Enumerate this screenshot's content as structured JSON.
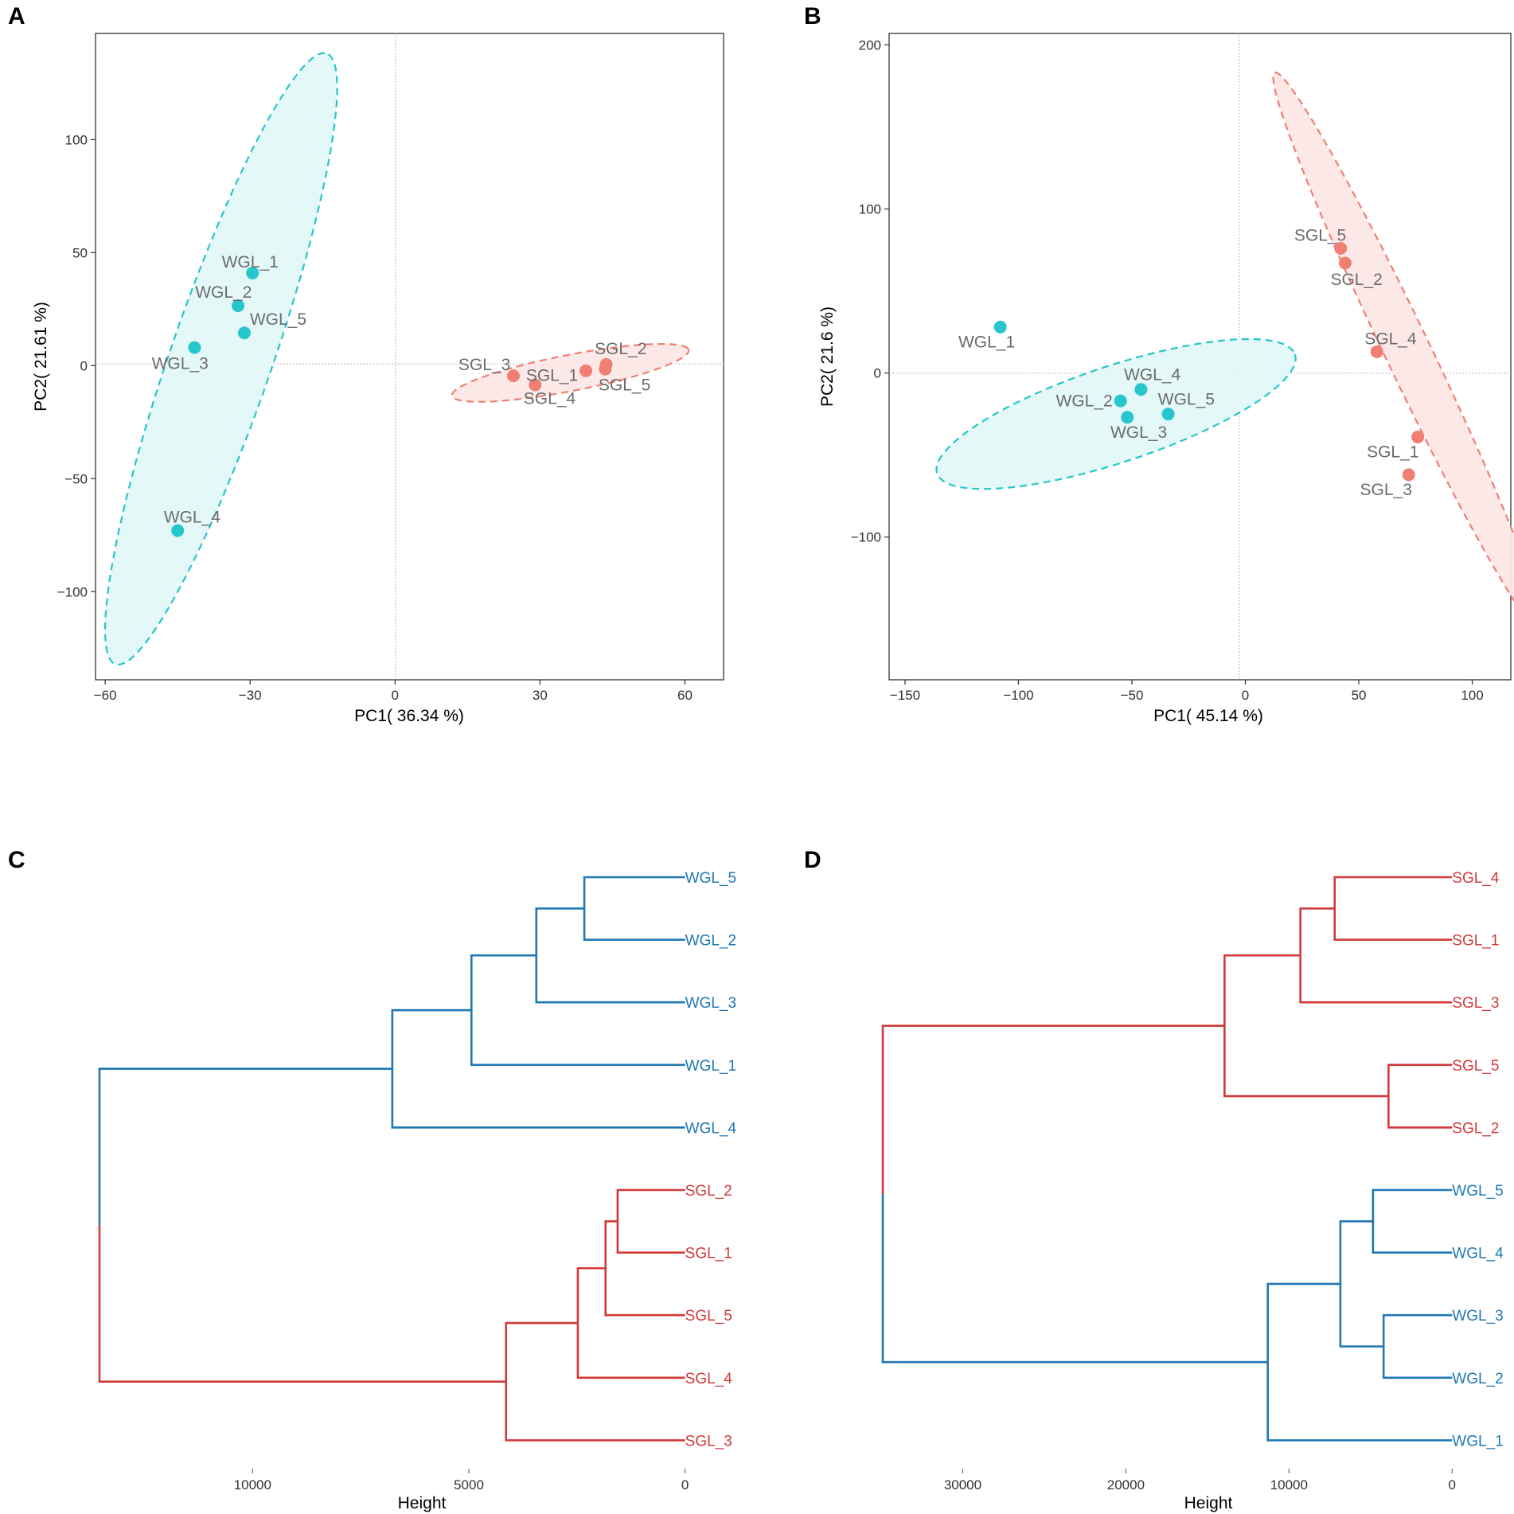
{
  "colors": {
    "wgl": "#26C6CC",
    "sgl": "#F07F72",
    "wgl_fill": "#E3F8F8",
    "sgl_fill": "#FCE8E6",
    "dendro_wgl": "#1F77B4",
    "dendro_sgl": "#D03A3A",
    "grid_line": "#b5b5b5"
  },
  "chart_data": [
    {
      "id": "pca_a",
      "type": "scatter",
      "panel_label": "A",
      "title": "",
      "xlabel": "PC1( 36.34 %)",
      "ylabel": "PC2( 21.61 %)",
      "xlim": [
        -62,
        68
      ],
      "ylim": [
        -139,
        147
      ],
      "xticks": [
        -60,
        -30,
        0,
        30,
        60
      ],
      "xtick_labels": [
        "−60",
        "−30",
        "0",
        "30",
        "60"
      ],
      "yticks": [
        -100,
        -50,
        0,
        50,
        100
      ],
      "ytick_labels": [
        "−100",
        "−50",
        "0",
        "50",
        "100"
      ],
      "groups": [
        {
          "name": "WGL",
          "color_key": "wgl",
          "ellipse": {
            "cx": -36,
            "cy": 3,
            "a": 137,
            "b": 11,
            "angle_deg": 81
          },
          "points": [
            {
              "label": "WGL_1",
              "x": -29.5,
              "y": 41,
              "dx": -0.5,
              "dy": 5
            },
            {
              "label": "WGL_2",
              "x": -32.5,
              "y": 26.5,
              "dx": -3,
              "dy": 6
            },
            {
              "label": "WGL_5",
              "x": -31.2,
              "y": 14.5,
              "dx": 7,
              "dy": 6
            },
            {
              "label": "WGL_3",
              "x": -41.5,
              "y": 8,
              "dx": -3,
              "dy": -7
            },
            {
              "label": "WGL_4",
              "x": -45,
              "y": -73,
              "dx": 3,
              "dy": 6
            }
          ]
        },
        {
          "name": "SGL",
          "color_key": "sgl",
          "ellipse": {
            "cx": 36.3,
            "cy": -3.2,
            "a": 26.6,
            "b": 7.5,
            "angle_deg": 24
          },
          "points": [
            {
              "label": "SGL_3",
              "x": 24.5,
              "y": -4.5,
              "dx": -6,
              "dy": 5
            },
            {
              "label": "SGL_1",
              "x": 39.5,
              "y": -2.3,
              "dx": -7,
              "dy": -2
            },
            {
              "label": "SGL_4",
              "x": 29,
              "y": -8.5,
              "dx": 3,
              "dy": -6
            },
            {
              "label": "SGL_2",
              "x": 43.7,
              "y": 0.5,
              "dx": 3,
              "dy": 7
            },
            {
              "label": "SGL_5",
              "x": 43.5,
              "y": -1.5,
              "dx": 4,
              "dy": -7
            }
          ]
        }
      ]
    },
    {
      "id": "pca_b",
      "type": "scatter",
      "panel_label": "B",
      "title": "",
      "xlabel": "PC1( 45.14 %)",
      "ylabel": "PC2( 21.6 %)",
      "xlim": [
        -157,
        117
      ],
      "ylim": [
        -187,
        207
      ],
      "xticks": [
        -150,
        -100,
        -50,
        0,
        50,
        100
      ],
      "xtick_labels": [
        "−150",
        "−100",
        "−50",
        "0",
        "50",
        "100"
      ],
      "yticks": [
        -100,
        0,
        100,
        200
      ],
      "ytick_labels": [
        "−100",
        "0",
        "100",
        "200"
      ],
      "groups": [
        {
          "name": "WGL",
          "color_key": "wgl",
          "ellipse": {
            "cx": -57,
            "cy": -25,
            "a": 87,
            "b": 28,
            "angle_deg": 26
          },
          "points": [
            {
              "label": "WGL_1",
              "x": -108,
              "y": 28,
              "dx": -6,
              "dy": -9
            },
            {
              "label": "WGL_4",
              "x": -46,
              "y": -10,
              "dx": 5,
              "dy": 9
            },
            {
              "label": "WGL_2",
              "x": -55,
              "y": -17,
              "dx": -16,
              "dy": 0
            },
            {
              "label": "WGL_5",
              "x": -34,
              "y": -25,
              "dx": 8,
              "dy": 9
            },
            {
              "label": "WGL_3",
              "x": -52,
              "y": -27,
              "dx": 5,
              "dy": -9
            }
          ]
        },
        {
          "name": "SGL",
          "color_key": "sgl",
          "ellipse": {
            "cx": 72,
            "cy": 12,
            "a": 181,
            "b": 10.5,
            "angle_deg": -71
          },
          "points": [
            {
              "label": "SGL_5",
              "x": 42,
              "y": 76,
              "dx": -9,
              "dy": 8
            },
            {
              "label": "SGL_2",
              "x": 44,
              "y": 67,
              "dx": 5,
              "dy": -10
            },
            {
              "label": "SGL_4",
              "x": 58,
              "y": 13,
              "dx": 6,
              "dy": 8
            },
            {
              "label": "SGL_1",
              "x": 76,
              "y": -39,
              "dx": -11,
              "dy": -9
            },
            {
              "label": "SGL_3",
              "x": 72,
              "y": -62,
              "dx": -10,
              "dy": -9
            }
          ]
        }
      ]
    },
    {
      "id": "dendro_c",
      "type": "dendrogram",
      "panel_label": "C",
      "title": "",
      "xlabel": "Height",
      "ylabel": "",
      "xlim_reversed": [
        14000,
        -1000
      ],
      "xticks": [
        10000,
        5000,
        0
      ],
      "xtick_labels": [
        "10000",
        "5000",
        "0"
      ],
      "leaves": [
        {
          "label": "WGL_5",
          "group": "wgl"
        },
        {
          "label": "WGL_2",
          "group": "wgl"
        },
        {
          "label": "WGL_3",
          "group": "wgl"
        },
        {
          "label": "WGL_1",
          "group": "wgl"
        },
        {
          "label": "WGL_4",
          "group": "wgl"
        },
        {
          "label": "SGL_2",
          "group": "sgl"
        },
        {
          "label": "SGL_1",
          "group": "sgl"
        },
        {
          "label": "SGL_5",
          "group": "sgl"
        },
        {
          "label": "SGL_4",
          "group": "sgl"
        },
        {
          "label": "SGL_3",
          "group": "sgl"
        }
      ],
      "merges": [
        {
          "id": "m1",
          "children": [
            "WGL_5",
            "WGL_2"
          ],
          "height": 2330,
          "group": "wgl"
        },
        {
          "id": "m2",
          "children": [
            "m1",
            "WGL_3"
          ],
          "height": 3440,
          "group": "wgl"
        },
        {
          "id": "m3",
          "children": [
            "m2",
            "WGL_1"
          ],
          "height": 4940,
          "group": "wgl"
        },
        {
          "id": "m4",
          "children": [
            "m3",
            "WGL_4"
          ],
          "height": 6770,
          "group": "wgl"
        },
        {
          "id": "m5",
          "children": [
            "SGL_2",
            "SGL_1"
          ],
          "height": 1560,
          "group": "sgl"
        },
        {
          "id": "m6",
          "children": [
            "m5",
            "SGL_5"
          ],
          "height": 1840,
          "group": "sgl"
        },
        {
          "id": "m7",
          "children": [
            "m6",
            "SGL_4"
          ],
          "height": 2480,
          "group": "sgl"
        },
        {
          "id": "m8",
          "children": [
            "m7",
            "SGL_3"
          ],
          "height": 4140,
          "group": "sgl"
        },
        {
          "id": "m9",
          "children": [
            "m4",
            "m8"
          ],
          "height": 13540,
          "group": "mixed"
        }
      ]
    },
    {
      "id": "dendro_d",
      "type": "dendrogram",
      "panel_label": "D",
      "title": "",
      "xlabel": "Height",
      "ylabel": "",
      "xlim_reversed": [
        37000,
        -3500
      ],
      "xticks": [
        30000,
        20000,
        10000,
        0
      ],
      "xtick_labels": [
        "30000",
        "20000",
        "10000",
        "0"
      ],
      "leaves": [
        {
          "label": "SGL_4",
          "group": "sgl"
        },
        {
          "label": "SGL_1",
          "group": "sgl"
        },
        {
          "label": "SGL_3",
          "group": "sgl"
        },
        {
          "label": "SGL_5",
          "group": "sgl"
        },
        {
          "label": "SGL_2",
          "group": "sgl"
        },
        {
          "label": "WGL_5",
          "group": "wgl"
        },
        {
          "label": "WGL_4",
          "group": "wgl"
        },
        {
          "label": "WGL_3",
          "group": "wgl"
        },
        {
          "label": "WGL_2",
          "group": "wgl"
        },
        {
          "label": "WGL_1",
          "group": "wgl"
        }
      ],
      "merges": [
        {
          "id": "n1",
          "children": [
            "SGL_4",
            "SGL_1"
          ],
          "height": 7200,
          "group": "sgl"
        },
        {
          "id": "n2",
          "children": [
            "n1",
            "SGL_3"
          ],
          "height": 9300,
          "group": "sgl"
        },
        {
          "id": "n3",
          "children": [
            "SGL_5",
            "SGL_2"
          ],
          "height": 3900,
          "group": "sgl"
        },
        {
          "id": "n4",
          "children": [
            "n2",
            "n3"
          ],
          "height": 13950,
          "group": "sgl"
        },
        {
          "id": "n5",
          "children": [
            "WGL_5",
            "WGL_4"
          ],
          "height": 4850,
          "group": "wgl"
        },
        {
          "id": "n6",
          "children": [
            "WGL_3",
            "WGL_2"
          ],
          "height": 4200,
          "group": "wgl"
        },
        {
          "id": "n7",
          "children": [
            "n5",
            "n6"
          ],
          "height": 6850,
          "group": "wgl"
        },
        {
          "id": "n8",
          "children": [
            "n7",
            "WGL_1"
          ],
          "height": 11300,
          "group": "wgl"
        },
        {
          "id": "n9",
          "children": [
            "n4",
            "n8"
          ],
          "height": 34900,
          "group": "mixed"
        }
      ]
    }
  ]
}
